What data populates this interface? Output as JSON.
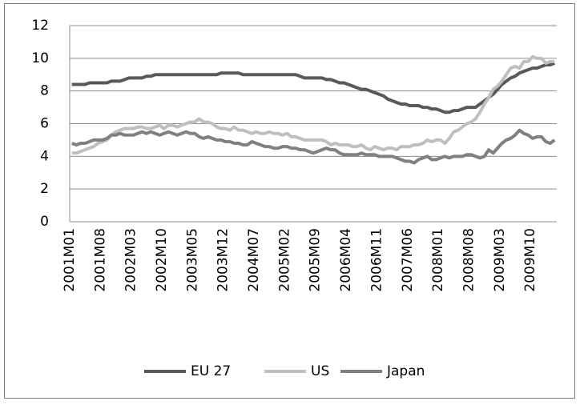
{
  "chart_data": {
    "type": "line",
    "categories": [
      "2001M01",
      null,
      null,
      null,
      null,
      null,
      null,
      "2001M08",
      null,
      null,
      null,
      null,
      null,
      null,
      "2002M03",
      null,
      null,
      null,
      null,
      null,
      null,
      "2002M10",
      null,
      null,
      null,
      null,
      null,
      null,
      "2003M05",
      null,
      null,
      null,
      null,
      null,
      null,
      "2003M12",
      null,
      null,
      null,
      null,
      null,
      null,
      "2004M07",
      null,
      null,
      null,
      null,
      null,
      null,
      "2005M02",
      null,
      null,
      null,
      null,
      null,
      null,
      "2005M09",
      null,
      null,
      null,
      null,
      null,
      null,
      "2006M04",
      null,
      null,
      null,
      null,
      null,
      null,
      "2006M11",
      null,
      null,
      null,
      null,
      null,
      null,
      "2007M06",
      null,
      null,
      null,
      null,
      null,
      null,
      "2008M01",
      null,
      null,
      null,
      null,
      null,
      null,
      "2008M08",
      null,
      null,
      null,
      null,
      null,
      null,
      "2009M03",
      null,
      null,
      null,
      null,
      null,
      null,
      "2009M10",
      null,
      null,
      null,
      null,
      null
    ],
    "series": [
      {
        "name": "EU 27",
        "color": "#595959",
        "values": [
          8.4,
          8.4,
          8.4,
          8.4,
          8.5,
          8.5,
          8.5,
          8.5,
          8.5,
          8.6,
          8.6,
          8.6,
          8.7,
          8.8,
          8.8,
          8.8,
          8.8,
          8.9,
          8.9,
          9.0,
          9.0,
          9.0,
          9.0,
          9.0,
          9.0,
          9.0,
          9.0,
          9.0,
          9.0,
          9.0,
          9.0,
          9.0,
          9.0,
          9.0,
          9.1,
          9.1,
          9.1,
          9.1,
          9.1,
          9.0,
          9.0,
          9.0,
          9.0,
          9.0,
          9.0,
          9.0,
          9.0,
          9.0,
          9.0,
          9.0,
          9.0,
          9.0,
          8.9,
          8.8,
          8.8,
          8.8,
          8.8,
          8.8,
          8.7,
          8.7,
          8.6,
          8.5,
          8.5,
          8.4,
          8.3,
          8.2,
          8.1,
          8.1,
          8.0,
          7.9,
          7.8,
          7.7,
          7.5,
          7.4,
          7.3,
          7.2,
          7.2,
          7.1,
          7.1,
          7.1,
          7.0,
          7.0,
          6.9,
          6.9,
          6.8,
          6.7,
          6.7,
          6.8,
          6.8,
          6.9,
          7.0,
          7.0,
          7.0,
          7.2,
          7.4,
          7.6,
          7.8,
          8.1,
          8.4,
          8.6,
          8.8,
          8.9,
          9.1,
          9.2,
          9.3,
          9.4,
          9.4,
          9.5,
          9.6,
          9.6,
          9.7
        ]
      },
      {
        "name": "US",
        "color": "#bfbfbf",
        "values": [
          4.2,
          4.2,
          4.3,
          4.4,
          4.5,
          4.6,
          4.8,
          4.9,
          5.0,
          5.3,
          5.5,
          5.6,
          5.7,
          5.7,
          5.7,
          5.8,
          5.8,
          5.7,
          5.7,
          5.8,
          5.9,
          5.7,
          5.9,
          5.9,
          5.8,
          5.9,
          6.0,
          6.1,
          6.1,
          6.3,
          6.1,
          6.1,
          6.0,
          5.8,
          5.7,
          5.7,
          5.6,
          5.8,
          5.6,
          5.6,
          5.5,
          5.4,
          5.5,
          5.4,
          5.4,
          5.5,
          5.4,
          5.4,
          5.3,
          5.4,
          5.2,
          5.2,
          5.1,
          5.0,
          5.0,
          5.0,
          5.0,
          5.0,
          4.9,
          4.7,
          4.8,
          4.7,
          4.7,
          4.7,
          4.6,
          4.6,
          4.7,
          4.5,
          4.4,
          4.6,
          4.5,
          4.4,
          4.5,
          4.5,
          4.4,
          4.6,
          4.6,
          4.6,
          4.7,
          4.7,
          4.8,
          5.0,
          4.9,
          5.0,
          5.0,
          4.8,
          5.1,
          5.5,
          5.6,
          5.8,
          6.0,
          6.1,
          6.3,
          6.7,
          7.2,
          7.6,
          8.1,
          8.3,
          8.6,
          9.0,
          9.4,
          9.5,
          9.4,
          9.8,
          9.8,
          10.1,
          10.0,
          10.0,
          9.7,
          9.8,
          9.8
        ]
      },
      {
        "name": "Japan",
        "color": "#808080",
        "values": [
          4.8,
          4.7,
          4.8,
          4.8,
          4.9,
          5.0,
          5.0,
          5.0,
          5.1,
          5.3,
          5.3,
          5.4,
          5.3,
          5.3,
          5.3,
          5.4,
          5.5,
          5.4,
          5.5,
          5.4,
          5.3,
          5.4,
          5.5,
          5.4,
          5.3,
          5.4,
          5.5,
          5.4,
          5.4,
          5.2,
          5.1,
          5.2,
          5.1,
          5.0,
          5.0,
          4.9,
          4.9,
          4.8,
          4.8,
          4.7,
          4.7,
          4.9,
          4.8,
          4.7,
          4.6,
          4.6,
          4.5,
          4.5,
          4.6,
          4.6,
          4.5,
          4.5,
          4.4,
          4.4,
          4.3,
          4.2,
          4.3,
          4.4,
          4.5,
          4.4,
          4.4,
          4.2,
          4.1,
          4.1,
          4.1,
          4.1,
          4.2,
          4.1,
          4.1,
          4.1,
          4.0,
          4.0,
          4.0,
          4.0,
          3.9,
          3.8,
          3.7,
          3.7,
          3.6,
          3.8,
          3.9,
          4.0,
          3.8,
          3.8,
          3.9,
          4.0,
          3.9,
          4.0,
          4.0,
          4.0,
          4.1,
          4.1,
          4.0,
          3.9,
          4.0,
          4.4,
          4.2,
          4.5,
          4.8,
          5.0,
          5.1,
          5.3,
          5.6,
          5.4,
          5.3,
          5.1,
          5.2,
          5.2,
          4.9,
          4.8,
          5.0
        ]
      }
    ],
    "ylim": [
      0,
      12
    ],
    "yticks": [
      0,
      2,
      4,
      6,
      8,
      10,
      12
    ],
    "grid": true,
    "legend": "bottom"
  }
}
